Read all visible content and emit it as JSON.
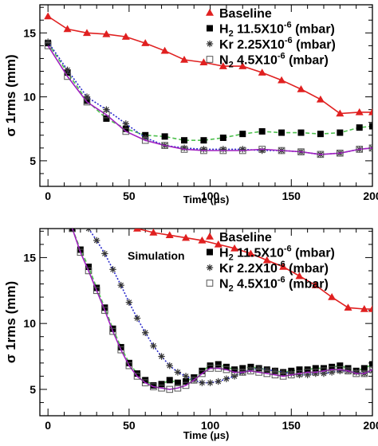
{
  "chart_data": [
    {
      "type": "line",
      "ylabel": "σ 1rms (mm)",
      "xlabel": "Time (μs)",
      "xlim": [
        -5,
        200
      ],
      "ylim": [
        3,
        17.2
      ],
      "xticks": [
        "0",
        "50",
        "100",
        "150",
        "200"
      ],
      "yticks": [
        "5",
        "10",
        "15"
      ],
      "grid": false,
      "legend_position": "top-right",
      "series": [
        {
          "name": "Baseline",
          "base": "Baseline",
          "sub": "",
          "sup": "",
          "tail": "",
          "color": "#e02020",
          "marker": "triangle",
          "line": "solid",
          "x": [
            0,
            12,
            24,
            36,
            48,
            60,
            72,
            84,
            96,
            108,
            120,
            132,
            144,
            156,
            168,
            180,
            192,
            200
          ],
          "y": [
            16.3,
            15.3,
            15.0,
            14.9,
            14.7,
            14.2,
            13.6,
            12.9,
            12.7,
            12.4,
            12.4,
            11.9,
            11.3,
            10.6,
            9.8,
            8.7,
            8.8,
            8.8
          ]
        },
        {
          "name": "H2 11.5X10-6 (mbar)",
          "base": "H",
          "sub": "2",
          "sup": "-6",
          "tail": " (mbar)",
          "mid": " 11.5X10",
          "color": "#4ec04e",
          "marker": "square",
          "line": "dashed",
          "x": [
            0,
            12,
            24,
            36,
            48,
            60,
            72,
            84,
            96,
            108,
            120,
            132,
            144,
            156,
            168,
            180,
            192,
            200
          ],
          "y": [
            14.2,
            11.9,
            9.7,
            8.3,
            7.5,
            7.0,
            6.9,
            6.6,
            6.6,
            6.8,
            7.1,
            7.3,
            7.2,
            7.2,
            7.1,
            7.2,
            7.6,
            7.7
          ]
        },
        {
          "name": "Kr 2.25X10-6 (mbar)",
          "base": "Kr",
          "sub": "",
          "sup": "-6",
          "tail": " (mbar)",
          "mid": " 2.25X10",
          "color": "#2a2acc",
          "marker": "star",
          "line": "dotted",
          "x": [
            0,
            12,
            24,
            36,
            48,
            60,
            72,
            84,
            96,
            108,
            120,
            132,
            144,
            156,
            168,
            180,
            192,
            200
          ],
          "y": [
            14.3,
            12.1,
            10.0,
            9.0,
            7.9,
            6.8,
            6.2,
            6.0,
            5.9,
            5.9,
            5.9,
            5.8,
            5.8,
            5.7,
            5.5,
            5.6,
            5.9,
            6.0
          ]
        },
        {
          "name": "N2 4.5X10-6 (mbar)",
          "base": "N",
          "sub": "2",
          "sup": "-6",
          "tail": " (mbar)",
          "mid": " 4.5X10",
          "color": "#a020c0",
          "marker": "open-square",
          "line": "solid",
          "x": [
            0,
            12,
            24,
            36,
            48,
            60,
            72,
            84,
            96,
            108,
            120,
            132,
            144,
            156,
            168,
            180,
            192,
            200
          ],
          "y": [
            14.0,
            11.6,
            9.6,
            8.6,
            7.3,
            6.6,
            6.2,
            5.9,
            5.8,
            5.8,
            5.8,
            5.9,
            5.8,
            5.7,
            5.5,
            5.6,
            5.9,
            6.0
          ]
        }
      ]
    },
    {
      "type": "line",
      "ylabel": "σ 1rms (mm)",
      "xlabel": "Time (μs)",
      "xlim": [
        -5,
        200
      ],
      "ylim": [
        3,
        17.2
      ],
      "xticks": [
        "0",
        "50",
        "100",
        "150",
        "200"
      ],
      "yticks": [
        "5",
        "10",
        "15"
      ],
      "grid": false,
      "legend_position": "top-right",
      "annotation": "Simulation",
      "series": [
        {
          "name": "Baseline",
          "base": "Baseline",
          "sub": "",
          "sup": "",
          "tail": "",
          "color": "#e02020",
          "marker": "triangle",
          "line": "solid",
          "x": [
            55,
            65,
            75,
            85,
            95,
            105,
            115,
            125,
            135,
            145,
            155,
            165,
            175,
            185,
            195,
            200
          ],
          "y": [
            17.2,
            16.9,
            16.7,
            16.5,
            16.3,
            16.0,
            15.7,
            15.3,
            14.8,
            14.3,
            13.6,
            12.9,
            12.0,
            11.2,
            11.1,
            11.1
          ]
        },
        {
          "name": "H2 11.5X10-6 (mbar)",
          "base": "H",
          "sub": "2",
          "sup": "-6",
          "tail": " (mbar)",
          "mid": " 11.5X10",
          "color": "#4ec04e",
          "marker": "square",
          "line": "dashed",
          "x": [
            15,
            20,
            25,
            30,
            35,
            40,
            45,
            50,
            55,
            60,
            65,
            70,
            75,
            80,
            85,
            90,
            95,
            100,
            105,
            110,
            115,
            120,
            125,
            130,
            135,
            140,
            145,
            150,
            155,
            160,
            165,
            170,
            175,
            180,
            185,
            190,
            195,
            200
          ],
          "y": [
            17.2,
            15.6,
            14.3,
            12.7,
            11.2,
            9.6,
            8.2,
            7.0,
            6.2,
            5.7,
            5.3,
            5.4,
            5.7,
            5.5,
            5.6,
            5.9,
            6.4,
            6.8,
            6.9,
            6.7,
            6.5,
            6.6,
            6.7,
            6.6,
            6.5,
            6.4,
            6.3,
            6.4,
            6.5,
            6.5,
            6.6,
            6.6,
            6.7,
            6.8,
            6.6,
            6.4,
            6.6,
            6.9
          ]
        },
        {
          "name": "Kr 2.2X10-6 (mbar)",
          "base": "Kr",
          "sub": "",
          "sup": "-6",
          "tail": " (mbar)",
          "mid": " 2.2X10",
          "color": "#2a2acc",
          "marker": "star",
          "line": "dotted",
          "x": [
            25,
            30,
            35,
            40,
            45,
            50,
            55,
            60,
            65,
            70,
            75,
            80,
            85,
            90,
            95,
            100,
            105,
            110,
            115,
            120,
            125,
            130,
            135,
            140,
            145,
            150,
            155,
            160,
            165,
            170,
            175,
            180,
            185,
            190,
            195,
            200
          ],
          "y": [
            17.2,
            16.3,
            15.3,
            14.1,
            12.9,
            11.6,
            10.4,
            9.3,
            8.3,
            7.5,
            6.8,
            6.3,
            6.0,
            5.7,
            5.5,
            5.5,
            5.6,
            5.8,
            6.0,
            6.3,
            6.5,
            6.6,
            6.5,
            6.4,
            6.3,
            6.2,
            6.1,
            6.1,
            6.2,
            6.2,
            6.3,
            6.4,
            6.4,
            6.3,
            6.2,
            6.4
          ]
        },
        {
          "name": "N2 4.5X10-6 (mbar)",
          "base": "N",
          "sub": "2",
          "sup": "-6",
          "tail": " (mbar)",
          "mid": " 4.5X10",
          "color": "#a020c0",
          "marker": "open-square",
          "line": "solid",
          "x": [
            15,
            20,
            25,
            30,
            35,
            40,
            45,
            50,
            55,
            60,
            65,
            70,
            75,
            80,
            85,
            90,
            95,
            100,
            105,
            110,
            115,
            120,
            125,
            130,
            135,
            140,
            145,
            150,
            155,
            160,
            165,
            170,
            175,
            180,
            185,
            190,
            195,
            200
          ],
          "y": [
            17.2,
            15.4,
            14.0,
            12.5,
            11.0,
            9.4,
            8.0,
            6.8,
            6.0,
            5.5,
            5.2,
            5.1,
            5.0,
            5.1,
            5.3,
            5.7,
            6.2,
            6.6,
            6.6,
            6.5,
            6.3,
            6.3,
            6.4,
            6.3,
            6.2,
            6.1,
            6.0,
            6.1,
            6.2,
            6.3,
            6.3,
            6.4,
            6.5,
            6.5,
            6.4,
            6.2,
            6.2,
            6.5
          ]
        }
      ]
    }
  ]
}
